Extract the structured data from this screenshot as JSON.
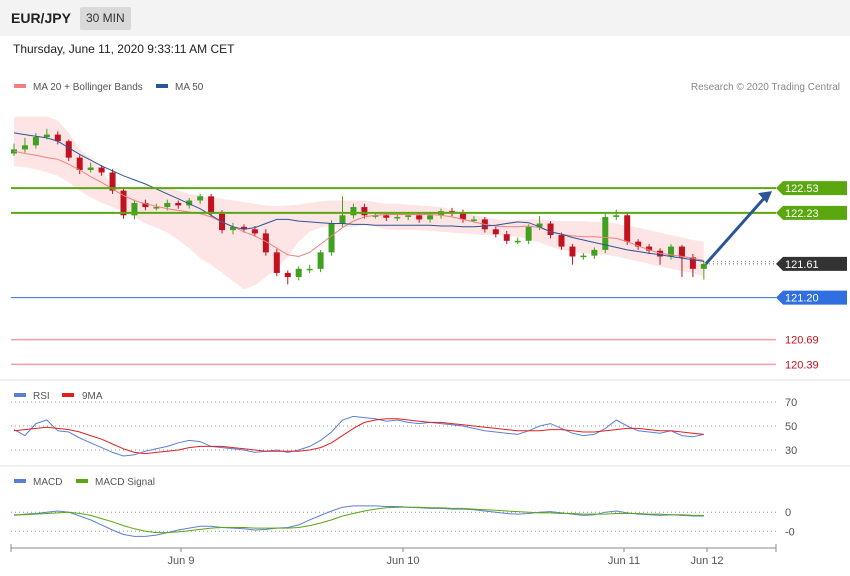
{
  "header": {
    "symbol": "EUR/JPY",
    "timeframe": "30 MIN",
    "datetime": "Thursday, June 11, 2020 9:33:11 AM CET"
  },
  "legend": {
    "ma20": "MA 20 + Bollinger Bands",
    "ma50": "MA 50",
    "credit": "Research © 2020 Trading Central",
    "rsi": "RSI",
    "rsi_ma": "9MA",
    "macd": "MACD",
    "macd_signal": "MACD Signal"
  },
  "colors": {
    "candle_up": "#3fa11f",
    "candle_down": "#c1121f",
    "ma20": "#f08080",
    "band_fill": "#fde2e2",
    "ma50": "#2b5597",
    "resistance": "#5aa70f",
    "support_blue": "#2f6fe0",
    "support_red": "#f4a0a0",
    "current": "#333333",
    "rsi": "#5b7fd6",
    "rsi_ma": "#e02020",
    "macd": "#5b7fd6",
    "macd_signal": "#5aa70f",
    "arrow": "#2b5597"
  },
  "chart_data": [
    {
      "type": "candlestick",
      "title": "",
      "ylim": [
        120.2,
        123.6
      ],
      "x_labels": [
        "Jun 9",
        "Jun 10",
        "Jun 11",
        "Jun 12"
      ],
      "ma20": [
        122.98,
        122.95,
        122.93,
        122.9,
        122.88,
        122.82,
        122.75,
        122.67,
        122.6,
        122.52,
        122.44,
        122.38,
        122.34,
        122.31,
        122.28,
        122.26,
        122.24,
        122.22,
        122.18,
        122.12,
        122.06,
        122.0,
        121.95,
        121.88,
        121.8,
        121.72,
        121.7,
        121.75,
        121.85,
        121.95,
        122.05,
        122.13,
        122.18,
        122.2,
        122.21,
        122.21,
        122.21,
        122.21,
        122.21,
        122.2,
        122.18,
        122.15,
        122.12,
        122.09,
        122.07,
        122.06,
        122.06,
        122.07,
        122.05,
        122.0,
        121.97,
        121.95,
        121.94,
        121.94,
        121.93,
        121.92,
        121.88,
        121.83,
        121.78,
        121.74,
        121.72,
        121.7,
        121.68,
        121.65
      ],
      "ma50": [
        123.2,
        123.18,
        123.16,
        123.14,
        123.1,
        123.02,
        122.94,
        122.87,
        122.8,
        122.74,
        122.68,
        122.63,
        122.58,
        122.52,
        122.46,
        122.4,
        122.34,
        122.28,
        122.2,
        122.12,
        122.06,
        122.03,
        122.05,
        122.1,
        122.15,
        122.15,
        122.13,
        122.12,
        122.11,
        122.1,
        122.1,
        122.09,
        122.09,
        122.08,
        122.08,
        122.08,
        122.08,
        122.08,
        122.08,
        122.07,
        122.07,
        122.06,
        122.06,
        122.07,
        122.08,
        122.1,
        122.12,
        122.11,
        122.06,
        122.0,
        121.97,
        121.93,
        121.9,
        121.87,
        121.84,
        121.81,
        121.78,
        121.76,
        121.74,
        121.72,
        121.7,
        121.68,
        121.66,
        121.64
      ],
      "band_upper": [
        123.4,
        123.4,
        123.4,
        123.4,
        123.35,
        123.2,
        123.0,
        122.9,
        122.75,
        122.55,
        122.5,
        122.52,
        122.54,
        122.55,
        122.53,
        122.5,
        122.46,
        122.44,
        122.42,
        122.4,
        122.38,
        122.36,
        122.34,
        122.32,
        122.31,
        122.32,
        122.33,
        122.35,
        122.37,
        122.38,
        122.38,
        122.38,
        122.38,
        122.36,
        122.34,
        122.34,
        122.33,
        122.32,
        122.31,
        122.3,
        122.27,
        122.23,
        122.2,
        122.18,
        122.15,
        122.14,
        122.14,
        122.15,
        122.15,
        122.14,
        122.13,
        122.13,
        122.13,
        122.12,
        122.12,
        122.1,
        122.07,
        122.05,
        122.02,
        121.99,
        121.96,
        121.93,
        121.9,
        121.88
      ],
      "band_lower": [
        122.8,
        122.78,
        122.76,
        122.72,
        122.68,
        122.6,
        122.5,
        122.42,
        122.35,
        122.3,
        122.25,
        122.18,
        122.1,
        122.05,
        121.99,
        121.9,
        121.8,
        121.68,
        121.6,
        121.5,
        121.4,
        121.3,
        121.35,
        121.45,
        121.55,
        121.7,
        121.88,
        122.0,
        122.05,
        122.07,
        122.05,
        122.06,
        122.08,
        122.06,
        122.03,
        122.02,
        122.02,
        122.02,
        122.01,
        122.0,
        121.99,
        121.98,
        121.97,
        121.96,
        121.96,
        121.95,
        121.94,
        121.91,
        121.87,
        121.82,
        121.78,
        121.76,
        121.74,
        121.73,
        121.72,
        121.7,
        121.67,
        121.64,
        121.61,
        121.58,
        121.55,
        121.52,
        121.5,
        121.46
      ],
      "ohlc_open": [
        122.95,
        123.0,
        123.05,
        123.15,
        123.18,
        123.1,
        122.9,
        122.75,
        122.78,
        122.72,
        122.5,
        122.2,
        122.35,
        122.3,
        122.3,
        122.35,
        122.32,
        122.38,
        122.43,
        122.22,
        122.02,
        122.06,
        122.03,
        121.98,
        121.75,
        121.5,
        121.45,
        121.55,
        121.55,
        121.75,
        122.1,
        122.2,
        122.3,
        122.2,
        122.2,
        122.17,
        122.18,
        122.2,
        122.15,
        122.2,
        122.25,
        122.23,
        122.15,
        122.15,
        122.03,
        121.97,
        121.89,
        121.89,
        122.06,
        122.1,
        121.96,
        121.82,
        121.7,
        121.71,
        121.78,
        122.18,
        122.2,
        121.88,
        121.82,
        121.77,
        121.7,
        121.82,
        121.69,
        121.55
      ],
      "ohlc_close": [
        123.0,
        123.05,
        123.15,
        123.18,
        123.1,
        122.9,
        122.75,
        122.78,
        122.72,
        122.5,
        122.2,
        122.35,
        122.3,
        122.3,
        122.35,
        122.32,
        122.38,
        122.43,
        122.22,
        122.02,
        122.06,
        122.03,
        121.98,
        121.75,
        121.5,
        121.45,
        121.55,
        121.55,
        121.75,
        122.1,
        122.2,
        122.3,
        122.2,
        122.2,
        122.17,
        122.18,
        122.2,
        122.15,
        122.2,
        122.25,
        122.23,
        122.15,
        122.15,
        122.03,
        121.97,
        121.89,
        121.89,
        122.06,
        122.1,
        121.96,
        121.82,
        121.7,
        121.71,
        121.78,
        122.18,
        122.2,
        121.88,
        121.82,
        121.77,
        121.7,
        121.82,
        121.69,
        121.55,
        121.61
      ],
      "ohlc_high": [
        123.07,
        123.14,
        123.2,
        123.25,
        123.22,
        123.12,
        122.93,
        122.84,
        122.81,
        122.76,
        122.53,
        122.39,
        122.39,
        122.34,
        122.39,
        122.38,
        122.41,
        122.46,
        122.46,
        122.26,
        122.11,
        122.09,
        122.07,
        122.03,
        121.79,
        121.53,
        121.58,
        121.6,
        121.78,
        122.14,
        122.43,
        122.34,
        122.34,
        122.24,
        122.24,
        122.21,
        122.23,
        122.24,
        122.24,
        122.28,
        122.29,
        122.27,
        122.19,
        122.18,
        122.06,
        122.01,
        121.93,
        122.09,
        122.19,
        122.13,
        121.99,
        121.85,
        121.74,
        121.81,
        122.22,
        122.27,
        122.22,
        121.91,
        121.85,
        121.8,
        121.85,
        121.84,
        121.73,
        121.65
      ],
      "ohlc_low": [
        122.92,
        122.96,
        123.01,
        123.12,
        123.06,
        122.86,
        122.7,
        122.72,
        122.68,
        122.46,
        122.16,
        122.15,
        122.26,
        122.26,
        122.26,
        122.28,
        122.28,
        122.34,
        122.18,
        121.98,
        121.97,
        121.99,
        121.94,
        121.71,
        121.46,
        121.36,
        121.41,
        121.5,
        121.51,
        121.71,
        122.06,
        122.16,
        122.16,
        122.16,
        122.13,
        122.13,
        122.14,
        122.11,
        122.11,
        122.16,
        122.19,
        122.11,
        122.11,
        121.99,
        121.93,
        121.85,
        121.85,
        121.85,
        122.02,
        121.92,
        121.78,
        121.6,
        121.66,
        121.67,
        121.74,
        122.14,
        121.84,
        121.78,
        121.73,
        121.6,
        121.66,
        121.45,
        121.45,
        121.42
      ],
      "levels": {
        "resistance": [
          122.53,
          122.23
        ],
        "support": [
          121.2,
          120.69,
          120.39
        ],
        "current": 121.61
      },
      "level_labels": [
        "122.53",
        "122.23",
        "121.61",
        "121.20",
        "120.69",
        "120.39"
      ]
    },
    {
      "type": "line",
      "title": "RSI",
      "ylim": [
        20,
        80
      ],
      "y_ticks": [
        "70",
        "50",
        "30"
      ],
      "series": [
        {
          "name": "RSI",
          "values": [
            47,
            42,
            52,
            55,
            46,
            45,
            40,
            36,
            32,
            28,
            25,
            26,
            29,
            31,
            33,
            36,
            38,
            37,
            33,
            32,
            31,
            30,
            28,
            29,
            30,
            28,
            30,
            33,
            38,
            45,
            55,
            58,
            57,
            56,
            54,
            55,
            53,
            52,
            53,
            52,
            51,
            50,
            48,
            46,
            45,
            44,
            43,
            46,
            50,
            52,
            48,
            44,
            42,
            43,
            48,
            55,
            50,
            46,
            45,
            44,
            46,
            42,
            41,
            43
          ]
        },
        {
          "name": "9MA",
          "values": [
            46,
            47,
            48,
            49,
            48,
            47,
            45,
            42,
            39,
            35,
            31,
            28,
            27,
            28,
            29,
            30,
            32,
            33,
            33,
            33,
            32,
            31,
            30,
            29,
            29,
            29,
            29,
            30,
            32,
            36,
            42,
            48,
            53,
            55,
            56,
            56,
            55,
            54,
            53,
            53,
            52,
            51,
            50,
            49,
            48,
            47,
            46,
            46,
            46,
            47,
            47,
            46,
            45,
            45,
            46,
            47,
            48,
            48,
            47,
            46,
            46,
            45,
            44,
            43
          ]
        }
      ]
    },
    {
      "type": "line",
      "title": "MACD",
      "ylim": [
        -0.5,
        0.35
      ],
      "y_ticks": [
        "0",
        "-0"
      ],
      "series": [
        {
          "name": "MACD",
          "values": [
            -0.05,
            -0.03,
            -0.02,
            0.0,
            0.02,
            0.0,
            -0.06,
            -0.12,
            -0.2,
            -0.28,
            -0.35,
            -0.38,
            -0.38,
            -0.36,
            -0.32,
            -0.28,
            -0.25,
            -0.22,
            -0.22,
            -0.24,
            -0.25,
            -0.26,
            -0.28,
            -0.27,
            -0.25,
            -0.24,
            -0.2,
            -0.12,
            -0.05,
            0.02,
            0.08,
            0.1,
            0.1,
            0.1,
            0.09,
            0.09,
            0.08,
            0.07,
            0.06,
            0.06,
            0.05,
            0.05,
            0.04,
            0.02,
            0.0,
            -0.02,
            -0.03,
            -0.02,
            0.0,
            0.01,
            -0.01,
            -0.03,
            -0.05,
            -0.04,
            0.0,
            0.02,
            -0.01,
            -0.03,
            -0.04,
            -0.05,
            -0.04,
            -0.05,
            -0.06,
            -0.06
          ]
        },
        {
          "name": "MACD Signal",
          "values": [
            -0.04,
            -0.04,
            -0.03,
            -0.02,
            -0.01,
            0.0,
            -0.02,
            -0.05,
            -0.1,
            -0.15,
            -0.21,
            -0.26,
            -0.3,
            -0.32,
            -0.32,
            -0.31,
            -0.29,
            -0.27,
            -0.25,
            -0.24,
            -0.24,
            -0.24,
            -0.25,
            -0.25,
            -0.25,
            -0.25,
            -0.24,
            -0.21,
            -0.17,
            -0.12,
            -0.06,
            -0.02,
            0.02,
            0.05,
            0.07,
            0.08,
            0.08,
            0.08,
            0.07,
            0.07,
            0.06,
            0.06,
            0.05,
            0.04,
            0.03,
            0.02,
            0.01,
            0.0,
            -0.01,
            -0.01,
            -0.02,
            -0.02,
            -0.03,
            -0.03,
            -0.03,
            -0.02,
            -0.02,
            -0.02,
            -0.03,
            -0.03,
            -0.04,
            -0.04,
            -0.05,
            -0.05
          ]
        }
      ]
    }
  ]
}
